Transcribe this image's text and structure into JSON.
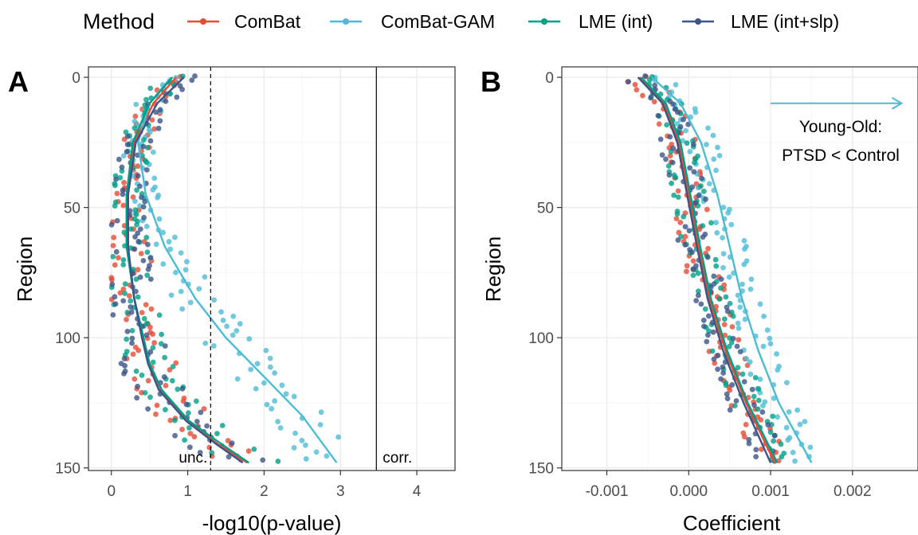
{
  "legend": {
    "title": "Method",
    "items": [
      {
        "label": "ComBat",
        "color": "#E64B35"
      },
      {
        "label": "ComBat-GAM",
        "color": "#4DBBD5"
      },
      {
        "label": "LME (int)",
        "color": "#00A087"
      },
      {
        "label": "LME (int+slp)",
        "color": "#3C5488"
      }
    ]
  },
  "chart_data": [
    {
      "type": "scatter",
      "panel_tag": "A",
      "xlabel": "-log10(p-value)",
      "ylabel": "Region",
      "xlim": [
        -0.3,
        4.5
      ],
      "ylim": [
        151,
        -4
      ],
      "y_reversed": true,
      "xticks": [
        0,
        1,
        2,
        3,
        4
      ],
      "yticks": [
        0,
        50,
        100,
        150
      ],
      "grid": true,
      "vlines": [
        {
          "x": 1.3,
          "style": "dashed",
          "label": "unc."
        },
        {
          "x": 3.47,
          "style": "solid",
          "label": "corr."
        }
      ],
      "series": [
        {
          "name": "ComBat",
          "color": "#E64B35",
          "trend_x": [
            0.85,
            0.55,
            0.3,
            0.2,
            0.2,
            0.3,
            0.42,
            0.5,
            0.65,
            1.0,
            1.4,
            1.78
          ],
          "trend_y": [
            0,
            10,
            25,
            45,
            65,
            85,
            100,
            110,
            120,
            132,
            141,
            148
          ]
        },
        {
          "name": "ComBat-GAM",
          "color": "#4DBBD5",
          "trend_x": [
            0.78,
            0.5,
            0.35,
            0.45,
            0.7,
            1.1,
            1.5,
            2.0,
            2.5,
            2.95
          ],
          "trend_y": [
            0,
            10,
            25,
            45,
            65,
            85,
            100,
            115,
            130,
            148
          ]
        },
        {
          "name": "LME (int)",
          "color": "#00A087",
          "trend_x": [
            0.8,
            0.5,
            0.28,
            0.2,
            0.2,
            0.3,
            0.42,
            0.5,
            0.66,
            1.02,
            1.45,
            1.8
          ],
          "trend_y": [
            0,
            10,
            25,
            45,
            65,
            85,
            100,
            110,
            120,
            132,
            141,
            148
          ]
        },
        {
          "name": "LME (int+slp)",
          "color": "#3C5488",
          "trend_x": [
            0.95,
            0.6,
            0.32,
            0.22,
            0.22,
            0.3,
            0.4,
            0.48,
            0.62,
            0.98,
            1.38,
            1.72
          ],
          "trend_y": [
            0,
            10,
            25,
            45,
            65,
            85,
            100,
            110,
            120,
            132,
            141,
            148
          ]
        }
      ]
    },
    {
      "type": "scatter",
      "panel_tag": "B",
      "xlabel": "Coefficient",
      "ylabel": "Region",
      "xlim": [
        -0.00155,
        0.0028
      ],
      "ylim": [
        151,
        -4
      ],
      "y_reversed": true,
      "xticks": [
        -0.001,
        0.0,
        0.001,
        0.002
      ],
      "xtick_labels": [
        "-0.001",
        "0.000",
        "0.001",
        "0.002"
      ],
      "yticks": [
        0,
        50,
        100,
        150
      ],
      "grid": true,
      "annotation": {
        "arrow_from": 0.001,
        "arrow_to": 0.0026,
        "arrow_y": 10,
        "color": "#4DBBD5",
        "lines": [
          "Young-Old:",
          "PTSD < Control"
        ]
      },
      "series": [
        {
          "name": "ComBat",
          "color": "#E64B35",
          "trend_x": [
            -0.0006,
            -0.0003,
            -0.00012,
            0.0,
            0.00012,
            0.00025,
            0.00045,
            0.0007,
            0.00105
          ],
          "trend_y": [
            0,
            10,
            25,
            45,
            65,
            85,
            105,
            125,
            148
          ]
        },
        {
          "name": "ComBat-GAM",
          "color": "#4DBBD5",
          "trend_x": [
            -0.00045,
            -0.0001,
            0.00015,
            0.00035,
            0.0005,
            0.00065,
            0.00085,
            0.0011,
            0.0015
          ],
          "trend_y": [
            0,
            10,
            25,
            45,
            65,
            85,
            105,
            125,
            148
          ]
        },
        {
          "name": "LME (int)",
          "color": "#00A087",
          "trend_x": [
            -0.00058,
            -0.00028,
            -0.0001,
            2e-05,
            0.00014,
            0.00027,
            0.00047,
            0.00072,
            0.00108
          ],
          "trend_y": [
            0,
            10,
            25,
            45,
            65,
            85,
            105,
            125,
            148
          ]
        },
        {
          "name": "LME (int+slp)",
          "color": "#3C5488",
          "trend_x": [
            -0.00062,
            -0.00032,
            -0.00014,
            -2e-05,
            0.0001,
            0.00023,
            0.00042,
            0.00067,
            0.001
          ],
          "trend_y": [
            0,
            10,
            25,
            45,
            65,
            85,
            105,
            125,
            148
          ]
        }
      ]
    }
  ]
}
